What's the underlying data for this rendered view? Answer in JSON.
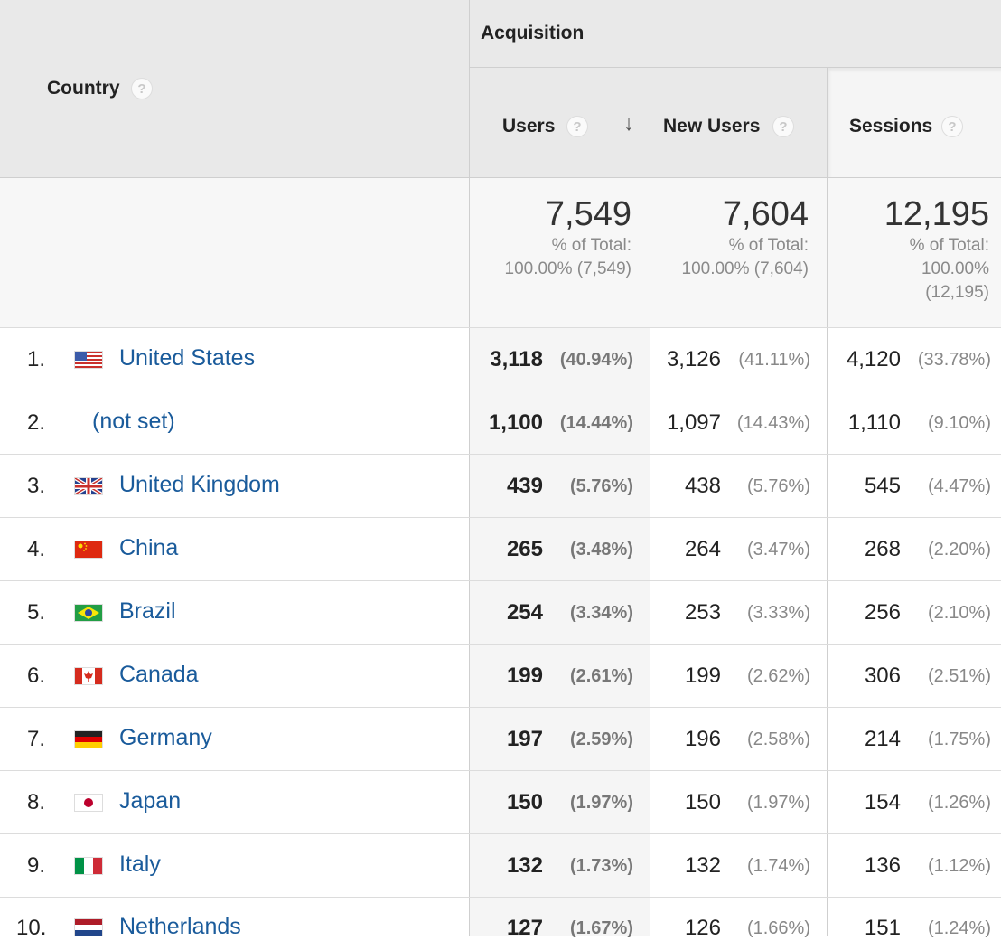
{
  "header": {
    "country_label": "Country",
    "group_label": "Acquisition",
    "help_glyph": "?",
    "sort_glyph": "↓",
    "columns": [
      {
        "label": "Users"
      },
      {
        "label": "New Users"
      },
      {
        "label": "Sessions"
      }
    ]
  },
  "totals": [
    {
      "value": "7,549",
      "line1": "% of Total:",
      "line2": "100.00% (7,549)",
      "line3": ""
    },
    {
      "value": "7,604",
      "line1": "% of Total:",
      "line2": "100.00% (7,604)",
      "line3": ""
    },
    {
      "value": "12,195",
      "line1": "% of Total:",
      "line2": "100.00%",
      "line3": "(12,195)"
    }
  ],
  "rows": [
    {
      "rank": "1.",
      "country": "United States",
      "flag": "us-flag-icon",
      "users": "3,118",
      "users_pct": "(40.94%)",
      "new_users": "3,126",
      "new_users_pct": "(41.11%)",
      "sessions": "4,120",
      "sessions_pct": "(33.78%)"
    },
    {
      "rank": "2.",
      "country": "(not set)",
      "flag": "",
      "users": "1,100",
      "users_pct": "(14.44%)",
      "new_users": "1,097",
      "new_users_pct": "(14.43%)",
      "sessions": "1,110",
      "sessions_pct": "(9.10%)"
    },
    {
      "rank": "3.",
      "country": "United Kingdom",
      "flag": "uk-flag-icon",
      "users": "439",
      "users_pct": "(5.76%)",
      "new_users": "438",
      "new_users_pct": "(5.76%)",
      "sessions": "545",
      "sessions_pct": "(4.47%)"
    },
    {
      "rank": "4.",
      "country": "China",
      "flag": "china-flag-icon",
      "users": "265",
      "users_pct": "(3.48%)",
      "new_users": "264",
      "new_users_pct": "(3.47%)",
      "sessions": "268",
      "sessions_pct": "(2.20%)"
    },
    {
      "rank": "5.",
      "country": "Brazil",
      "flag": "brazil-flag-icon",
      "users": "254",
      "users_pct": "(3.34%)",
      "new_users": "253",
      "new_users_pct": "(3.33%)",
      "sessions": "256",
      "sessions_pct": "(2.10%)"
    },
    {
      "rank": "6.",
      "country": "Canada",
      "flag": "canada-flag-icon",
      "users": "199",
      "users_pct": "(2.61%)",
      "new_users": "199",
      "new_users_pct": "(2.62%)",
      "sessions": "306",
      "sessions_pct": "(2.51%)"
    },
    {
      "rank": "7.",
      "country": "Germany",
      "flag": "germany-flag-icon",
      "users": "197",
      "users_pct": "(2.59%)",
      "new_users": "196",
      "new_users_pct": "(2.58%)",
      "sessions": "214",
      "sessions_pct": "(1.75%)"
    },
    {
      "rank": "8.",
      "country": "Japan",
      "flag": "japan-flag-icon",
      "users": "150",
      "users_pct": "(1.97%)",
      "new_users": "150",
      "new_users_pct": "(1.97%)",
      "sessions": "154",
      "sessions_pct": "(1.26%)"
    },
    {
      "rank": "9.",
      "country": "Italy",
      "flag": "italy-flag-icon",
      "users": "132",
      "users_pct": "(1.73%)",
      "new_users": "132",
      "new_users_pct": "(1.74%)",
      "sessions": "136",
      "sessions_pct": "(1.12%)"
    },
    {
      "rank": "10.",
      "country": "Netherlands",
      "flag": "netherlands-flag-icon",
      "users": "127",
      "users_pct": "(1.67%)",
      "new_users": "126",
      "new_users_pct": "(1.66%)",
      "sessions": "151",
      "sessions_pct": "(1.24%)"
    }
  ]
}
